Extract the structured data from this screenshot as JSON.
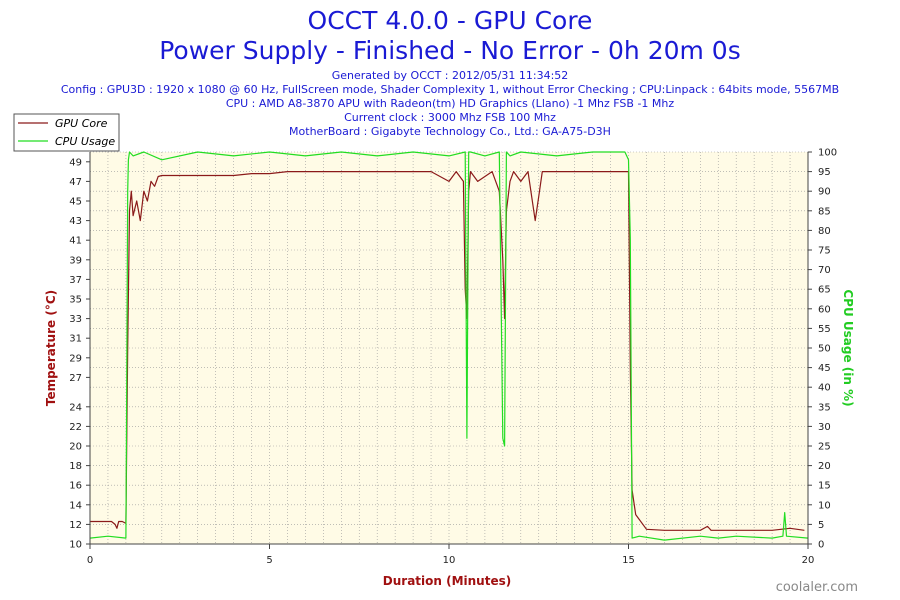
{
  "header": {
    "title": "OCCT 4.0.0 - GPU Core",
    "subtitle": "Power Supply - Finished - No Error - 0h 20m 0s",
    "info_lines": [
      "Generated by OCCT : 2012/05/31 11:34:52",
      "Config : GPU3D : 1920 x 1080 @ 60 Hz, FullScreen mode, Shader Complexity 1, without Error Checking ; CPU:Linpack : 64bits mode, 5567MB",
      "CPU : AMD A8-3870 APU with Radeon(tm) HD Graphics (Llano) -1 Mhz FSB -1 Mhz",
      "Current clock : 3000 Mhz FSB 100 Mhz",
      "MotherBoard : Gigabyte Technology Co., Ltd.: GA-A75-D3H"
    ]
  },
  "watermark": "coolaler.com",
  "colors": {
    "title": "#1a1ad4",
    "gpu_core": "#8b1a1a",
    "cpu_usage": "#22dd22",
    "plot_bg": "#fffbe6",
    "axis_left": "#a01010",
    "axis_right": "#22cc22",
    "xlabel": "#a01010"
  },
  "chart_data": {
    "type": "line",
    "xlabel": "Duration (Minutes)",
    "ylabel_left": "Temperature (°C)",
    "ylabel_right": "CPU Usage (in %)",
    "xlim": [
      0,
      20
    ],
    "ylim_left": [
      10,
      50
    ],
    "ylim_right": [
      0,
      100
    ],
    "x_ticks": [
      0,
      5,
      10,
      15,
      20
    ],
    "y_ticks_left": [
      10,
      12,
      14,
      16,
      18,
      20,
      22,
      24,
      27,
      29,
      31,
      33,
      35,
      37,
      39,
      41,
      43,
      45,
      47,
      49
    ],
    "y_ticks_right": [
      0,
      5,
      10,
      15,
      20,
      25,
      30,
      35,
      40,
      45,
      50,
      55,
      60,
      65,
      70,
      75,
      80,
      85,
      90,
      95,
      100
    ],
    "grid": true,
    "legend_position": "top-left",
    "series": [
      {
        "name": "GPU Core",
        "axis": "left",
        "x": [
          0,
          0.6,
          0.7,
          0.75,
          0.8,
          0.9,
          1.0,
          1.05,
          1.1,
          1.15,
          1.2,
          1.3,
          1.4,
          1.5,
          1.6,
          1.7,
          1.8,
          1.9,
          2.0,
          2.5,
          3.0,
          3.5,
          4.0,
          4.5,
          5.0,
          5.5,
          6.0,
          7.0,
          8.0,
          9.0,
          9.5,
          10.0,
          10.2,
          10.4,
          10.45,
          10.5,
          10.55,
          10.6,
          10.8,
          11.0,
          11.2,
          11.4,
          11.5,
          11.55,
          11.6,
          11.7,
          11.8,
          12.0,
          12.2,
          12.4,
          12.5,
          12.6,
          12.8,
          13.0,
          14.0,
          14.9,
          15.0,
          15.05,
          15.1,
          15.2,
          15.5,
          16.0,
          17.0,
          17.2,
          17.3,
          18.0,
          19.0,
          19.5,
          19.9
        ],
        "values": [
          12.3,
          12.3,
          12.0,
          11.6,
          12.3,
          12.3,
          12.1,
          30.0,
          44.0,
          46.0,
          43.5,
          45.0,
          43.0,
          46.0,
          45.0,
          47.0,
          46.5,
          47.5,
          47.6,
          47.6,
          47.6,
          47.6,
          47.6,
          47.8,
          47.8,
          48.0,
          48.0,
          48.0,
          48.0,
          48.0,
          48.0,
          47.0,
          48.0,
          47.0,
          36.0,
          33.0,
          46.0,
          48.0,
          47.0,
          47.5,
          48.0,
          46.0,
          39.0,
          33.0,
          44.0,
          47.0,
          48.0,
          47.0,
          48.0,
          43.0,
          45.5,
          48.0,
          48.0,
          48.0,
          48.0,
          48.0,
          48.0,
          28.0,
          15.5,
          13.0,
          11.5,
          11.4,
          11.4,
          11.8,
          11.4,
          11.4,
          11.4,
          11.6,
          11.4
        ]
      },
      {
        "name": "CPU Usage",
        "axis": "right",
        "x": [
          0,
          0.5,
          1.0,
          1.03,
          1.05,
          1.07,
          1.1,
          1.2,
          1.5,
          2.0,
          3.0,
          4.0,
          5.0,
          6.0,
          7.0,
          8.0,
          9.0,
          10.0,
          10.45,
          10.5,
          10.55,
          10.6,
          11.0,
          11.4,
          11.5,
          11.55,
          11.6,
          11.7,
          12.0,
          13.0,
          14.0,
          14.9,
          15.0,
          15.05,
          15.1,
          15.3,
          16.0,
          17.0,
          17.5,
          18.0,
          19.0,
          19.3,
          19.35,
          19.4,
          20.0
        ],
        "values": [
          1.5,
          2.0,
          1.5,
          54.0,
          90.0,
          98.0,
          100,
          99,
          100,
          98,
          100,
          99,
          100,
          99,
          100,
          99,
          100,
          99,
          100,
          27.0,
          100,
          100,
          99,
          100,
          27.0,
          25.0,
          100,
          99,
          100,
          99,
          100,
          100,
          98.0,
          78.0,
          1.5,
          2.0,
          1.0,
          2.0,
          1.5,
          2.0,
          1.5,
          2.0,
          8.0,
          2.0,
          1.5
        ]
      }
    ]
  }
}
